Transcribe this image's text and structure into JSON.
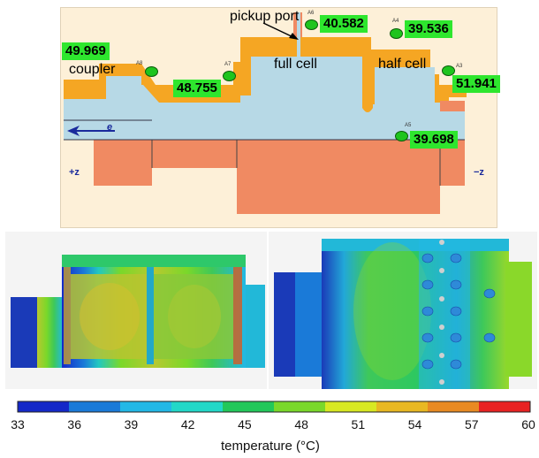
{
  "cross_section": {
    "labels": {
      "pickup_port": "pickup port",
      "coupler": "coupler",
      "full_cell": "full cell",
      "half_cell": "half cell",
      "beam": "e",
      "plus_z": "+z",
      "minus_z": "−z"
    },
    "sensors": [
      {
        "id": "A8",
        "value": "49.969"
      },
      {
        "id": "A7",
        "value": "48.755"
      },
      {
        "id": "A6",
        "value": "40.582"
      },
      {
        "id": "A4",
        "value": "39.536"
      },
      {
        "id": "A3",
        "value": "51.941"
      },
      {
        "id": "A5",
        "value": "39.698"
      }
    ],
    "colors": {
      "background": "#fdf0d8",
      "cavity": "#b7d9e6",
      "copper": "#f08a62",
      "body": "#f5a623",
      "sensor": "#1ec41e",
      "label_bg": "#2ee62e"
    }
  },
  "colorbar": {
    "ticks": [
      "33",
      "36",
      "39",
      "42",
      "45",
      "48",
      "51",
      "54",
      "57",
      "60"
    ],
    "colors": [
      "#1428c8",
      "#1a7ad8",
      "#22b8e6",
      "#22d8c8",
      "#22c85a",
      "#7ad82a",
      "#d8e822",
      "#e8b822",
      "#e88a22",
      "#e82222"
    ],
    "title": "temperature (°C)"
  }
}
